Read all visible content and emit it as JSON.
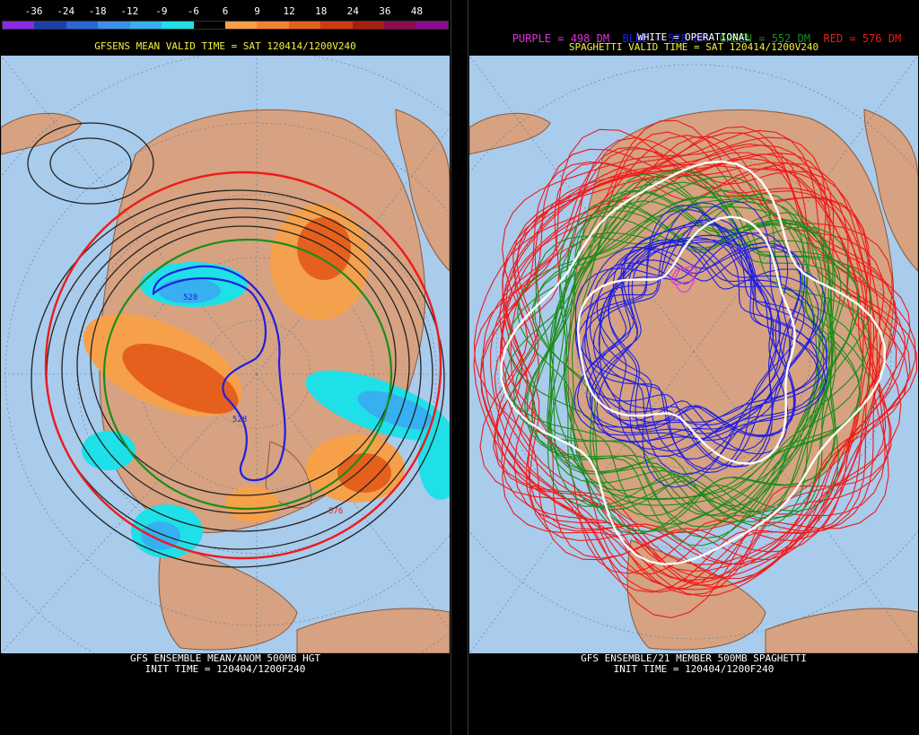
{
  "left": {
    "scale_labels": [
      "-36",
      "-24",
      "-18",
      "-12",
      "-9",
      "-6",
      "6",
      "9",
      "12",
      "18",
      "24",
      "36",
      "48"
    ],
    "scale_colors": [
      "#8a2be2",
      "#1d3fa8",
      "#2a66d6",
      "#3d8fe8",
      "#36b0f0",
      "#1fe0e8",
      "#000000",
      "#f6a14a",
      "#f28430",
      "#e5601d",
      "#d03a12",
      "#a81e10",
      "#8c0a50",
      "#8c0a90"
    ],
    "valid_time": "GFSENS MEAN VALID TIME = SAT 120414/1200V240",
    "contour_labels": [
      "528",
      "528",
      "576"
    ],
    "footer_line1": "GFS ENSEMBLE MEAN/ANOM 500MB HGT",
    "footer_line2": "INIT TIME = 120404/1200F240"
  },
  "right": {
    "legend_purple": "PURPLE = 498 DM",
    "legend_blue": "BLUE = 528 DM",
    "legend_green": "GREEN = 552 DM",
    "legend_red": "RED = 576 DM",
    "legend_white": "WHITE = OPERATIONAL",
    "valid_time": "SPAGHETTI VALID TIME = SAT 120414/1200V240",
    "footer_line1": "GFS ENSEMBLE/21 MEMBER 500MB SPAGHETTI",
    "footer_line2": "INIT TIME = 120404/1200F240"
  },
  "colors": {
    "ocean": "#a9cbec",
    "land": "#d6a281",
    "purple": "#dd33dd",
    "blue": "#1f1fe0",
    "green": "#1c8c1c",
    "red": "#ee1a1a",
    "white": "#ffffff",
    "yellow": "#f2f23a"
  }
}
